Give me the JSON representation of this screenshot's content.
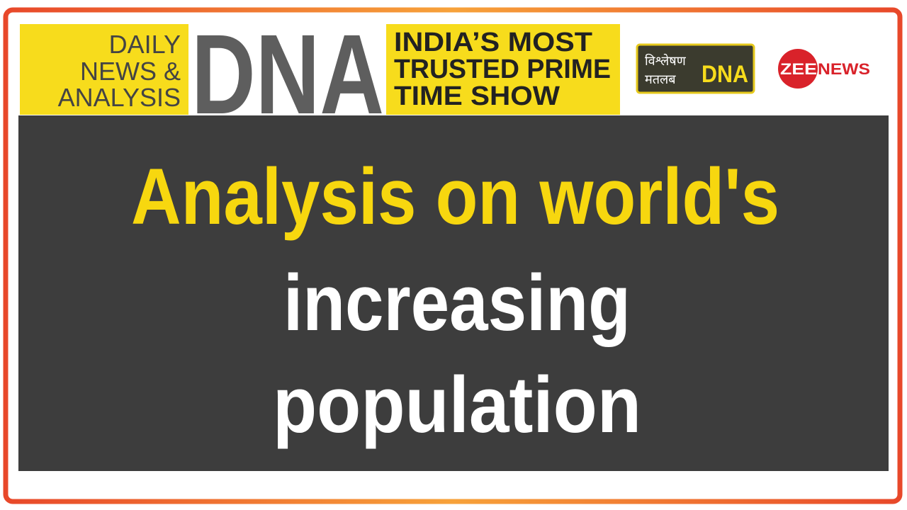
{
  "header": {
    "left_lines": [
      "DAILY",
      "NEWS &",
      "ANALYSIS"
    ],
    "logo": "DNA",
    "tagline_lines": [
      "INDIA’S MOST",
      "TRUSTED PRIME",
      "TIME SHOW"
    ],
    "badge_lines": [
      "विश्लेषण",
      "मतलब",
      "DNA"
    ],
    "brand": {
      "circle": "ZEE",
      "text": "NEWS"
    }
  },
  "headline": {
    "lines": [
      "Analysis on world's",
      "increasing",
      "population"
    ]
  }
}
